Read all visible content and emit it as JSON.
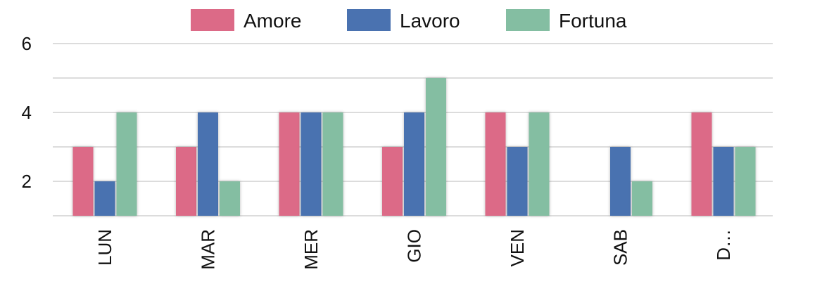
{
  "chart_data": {
    "type": "bar",
    "categories": [
      "LUN",
      "MAR",
      "MER",
      "GIO",
      "VEN",
      "SAB",
      "D…"
    ],
    "series": [
      {
        "name": "Amore",
        "color": "#dc6a87",
        "values": [
          3,
          3,
          4,
          3,
          4,
          1,
          4
        ]
      },
      {
        "name": "Lavoro",
        "color": "#4a72b0",
        "values": [
          2,
          4,
          4,
          4,
          3,
          3,
          3
        ]
      },
      {
        "name": "Fortuna",
        "color": "#84bea2",
        "values": [
          4,
          2,
          4,
          5,
          4,
          2,
          3
        ]
      }
    ],
    "ylim": [
      1,
      6
    ],
    "yticks": [
      2,
      4,
      6
    ],
    "grid": true,
    "legend": "top-center"
  }
}
